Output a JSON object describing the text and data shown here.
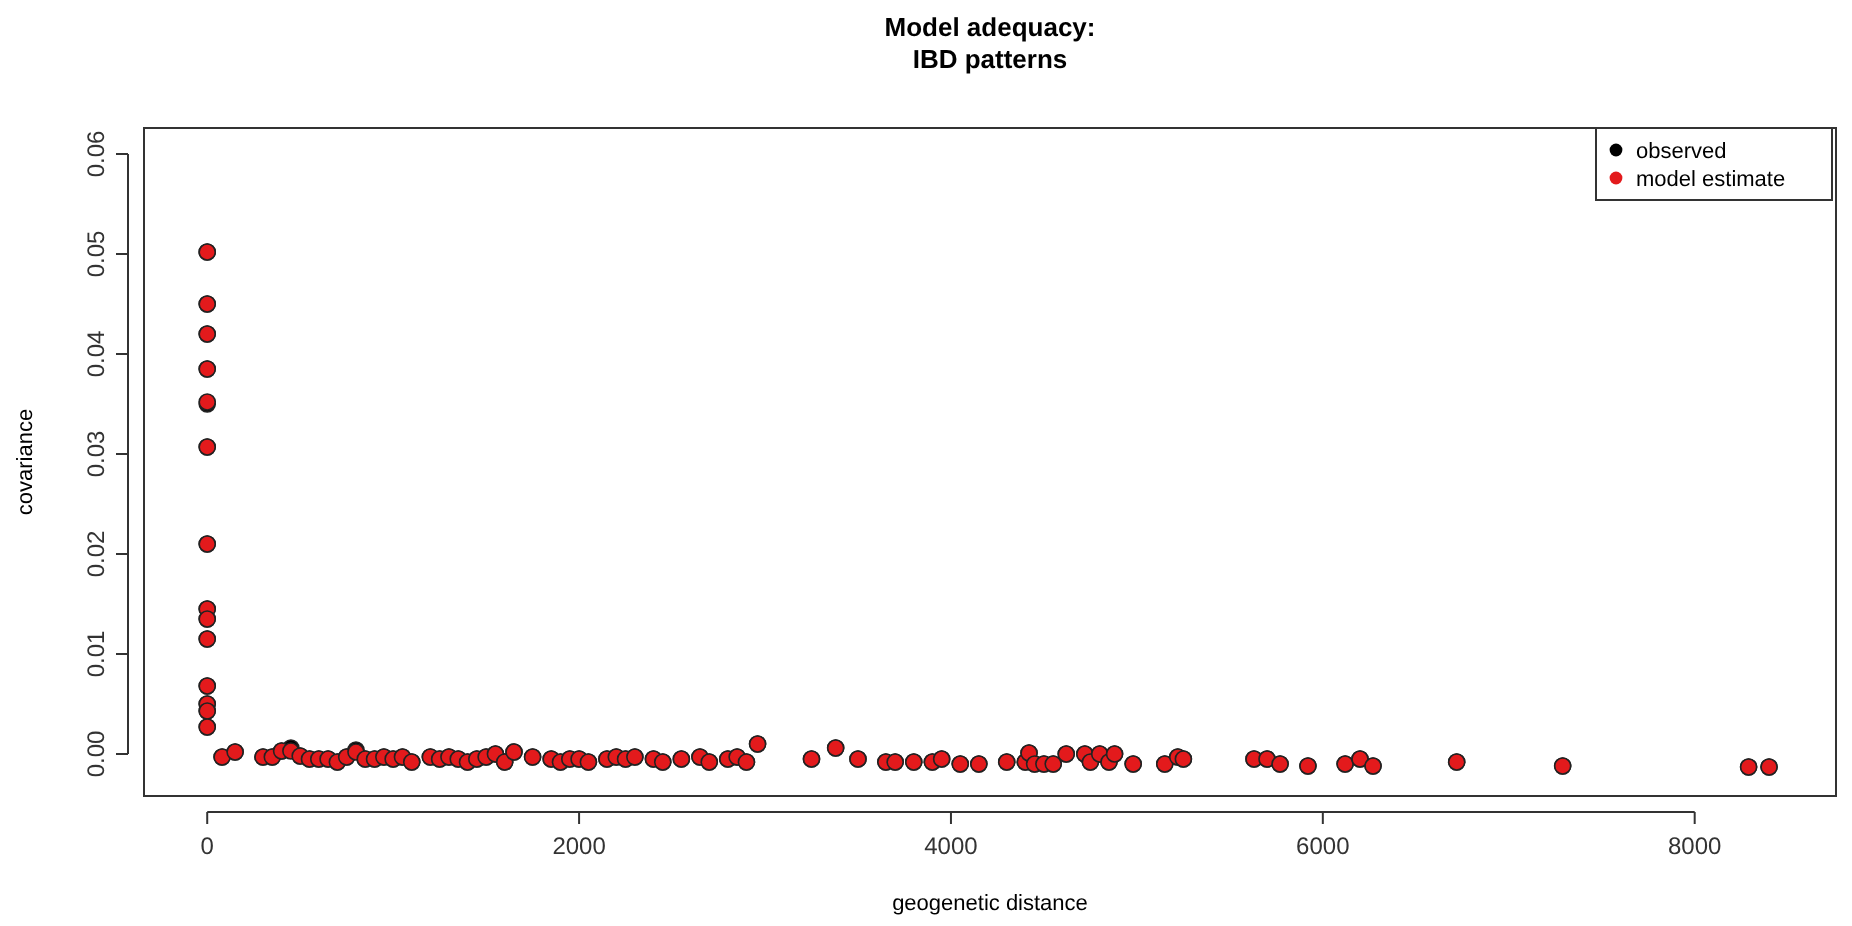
{
  "chart_data": {
    "type": "scatter",
    "title": "Model adequacy:\nIBD patterns",
    "xlabel": "geogenetic distance",
    "ylabel": "covariance",
    "xlim": [
      -340,
      8760
    ],
    "ylim": [
      -0.0042,
      0.0626
    ],
    "xticks": [
      0,
      2000,
      4000,
      6000,
      8000
    ],
    "yticks": [
      {
        "value": 0,
        "label": "0.00"
      },
      {
        "value": 0.01,
        "label": "0.01"
      },
      {
        "value": 0.02,
        "label": "0.02"
      },
      {
        "value": 0.03,
        "label": "0.03"
      },
      {
        "value": 0.04,
        "label": "0.04"
      },
      {
        "value": 0.05,
        "label": "0.05"
      },
      {
        "value": 0.06,
        "label": "0.06"
      }
    ],
    "grid": false,
    "legend": "top right",
    "marker": "circle",
    "x": [
      0,
      0,
      0,
      0,
      0,
      0,
      0,
      0,
      0,
      0,
      0,
      0,
      0,
      0,
      80,
      150,
      300,
      350,
      400,
      450,
      500,
      550,
      600,
      650,
      700,
      750,
      800,
      850,
      900,
      950,
      1000,
      1050,
      1100,
      1200,
      1250,
      1300,
      1350,
      1400,
      1450,
      1500,
      1550,
      1600,
      1650,
      1750,
      1850,
      1900,
      1950,
      2000,
      2050,
      2150,
      2200,
      2250,
      2300,
      2400,
      2450,
      2550,
      2650,
      2700,
      2800,
      2850,
      2900,
      2960,
      3250,
      3380,
      3500,
      3650,
      3700,
      3800,
      3900,
      3950,
      4050,
      4150,
      4300,
      4400,
      4420,
      4450,
      4500,
      4550,
      4620,
      4720,
      4750,
      4800,
      4850,
      4880,
      4980,
      5150,
      5220,
      5250,
      5630,
      5700,
      5770,
      5920,
      6120,
      6200,
      6270,
      6720,
      7290,
      8290,
      8400
    ],
    "series": [
      {
        "name": "observed",
        "color": "#000000",
        "values": [
          0.0502,
          0.045,
          0.042,
          0.0385,
          0.035,
          0.0307,
          0.021,
          0.0145,
          0.0115,
          0.0068,
          0.005,
          0.0043,
          0.0027,
          0.0135,
          -0.0003,
          0.0002,
          -0.0003,
          -0.0003,
          0.0003,
          0.0006,
          -0.0002,
          -0.0005,
          -0.0005,
          -0.0005,
          -0.0008,
          -0.0003,
          0.0004,
          -0.0005,
          -0.0005,
          -0.0003,
          -0.0005,
          -0.0003,
          -0.0008,
          -0.0003,
          -0.0005,
          -0.0003,
          -0.0005,
          -0.0008,
          -0.0005,
          -0.0003,
          0,
          -0.0008,
          0.0002,
          -0.0003,
          -0.0005,
          -0.0008,
          -0.0005,
          -0.0005,
          -0.0008,
          -0.0005,
          -0.0003,
          -0.0005,
          -0.0003,
          -0.0005,
          -0.0008,
          -0.0005,
          -0.0003,
          -0.0008,
          -0.0005,
          -0.0003,
          -0.0008,
          0.001,
          -0.0005,
          0.0006,
          -0.0005,
          -0.0008,
          -0.0008,
          -0.0008,
          -0.0008,
          -0.0005,
          -0.001,
          -0.001,
          -0.0008,
          -0.0008,
          0.0001,
          -0.001,
          -0.001,
          -0.001,
          0,
          0,
          -0.0008,
          0,
          -0.0008,
          0,
          -0.001,
          -0.001,
          -0.0003,
          -0.0005,
          -0.0005,
          -0.0005,
          -0.001,
          -0.0012,
          -0.001,
          -0.0005,
          -0.0012,
          -0.0008,
          -0.0012,
          -0.0013,
          -0.0013
        ]
      },
      {
        "name": "model estimate",
        "color": "#e31a1c",
        "values": [
          0.0502,
          0.045,
          0.042,
          0.0385,
          0.0352,
          0.0307,
          0.021,
          0.0145,
          0.0115,
          0.0068,
          0.005,
          0.0043,
          0.0027,
          0.0135,
          -0.0003,
          0.0002,
          -0.0003,
          -0.0003,
          0.0003,
          0.0003,
          -0.0002,
          -0.0005,
          -0.0005,
          -0.0005,
          -0.0008,
          -0.0003,
          0.0002,
          -0.0005,
          -0.0005,
          -0.0003,
          -0.0005,
          -0.0003,
          -0.0008,
          -0.0003,
          -0.0005,
          -0.0003,
          -0.0005,
          -0.0008,
          -0.0005,
          -0.0003,
          0,
          -0.0008,
          0.0002,
          -0.0003,
          -0.0005,
          -0.0008,
          -0.0005,
          -0.0005,
          -0.0008,
          -0.0005,
          -0.0003,
          -0.0005,
          -0.0003,
          -0.0005,
          -0.0008,
          -0.0005,
          -0.0003,
          -0.0008,
          -0.0005,
          -0.0003,
          -0.0008,
          0.001,
          -0.0005,
          0.0006,
          -0.0005,
          -0.0008,
          -0.0008,
          -0.0008,
          -0.0008,
          -0.0005,
          -0.001,
          -0.001,
          -0.0008,
          -0.0008,
          0.0001,
          -0.001,
          -0.001,
          -0.001,
          0,
          0,
          -0.0008,
          0,
          -0.0008,
          0,
          -0.001,
          -0.001,
          -0.0003,
          -0.0005,
          -0.0005,
          -0.0005,
          -0.001,
          -0.0012,
          -0.001,
          -0.0005,
          -0.0012,
          -0.0008,
          -0.0012,
          -0.0013,
          -0.0013
        ]
      }
    ]
  }
}
